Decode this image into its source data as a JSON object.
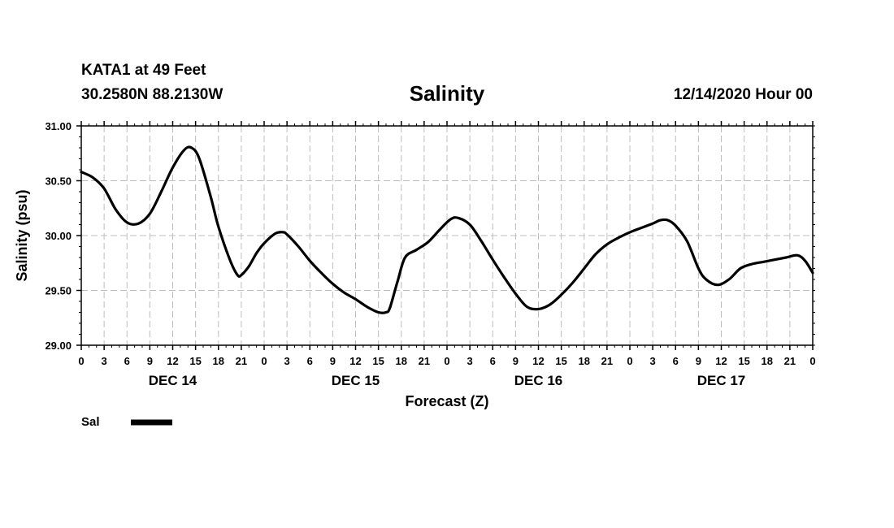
{
  "header": {
    "station": "KATA1 at 49 Feet",
    "coords": "30.2580N 88.2130W",
    "title": "Salinity",
    "datetime": "12/14/2020 Hour 00"
  },
  "chart_data": {
    "type": "line",
    "title": "Salinity",
    "xlabel": "Forecast (Z)",
    "ylabel": "Salinity (psu)",
    "ylim": [
      29.0,
      31.0
    ],
    "xlim_hours": [
      0,
      96
    ],
    "yticks": [
      "29.00",
      "29.50",
      "30.00",
      "30.50",
      "31.00"
    ],
    "ytick_values": [
      29.0,
      29.5,
      30.0,
      30.5,
      31.0
    ],
    "xtick_labels": [
      "0",
      "3",
      "6",
      "9",
      "12",
      "15",
      "18",
      "21",
      "0",
      "3",
      "6",
      "9",
      "12",
      "15",
      "18",
      "21",
      "0",
      "3",
      "6",
      "9",
      "12",
      "15",
      "18",
      "21",
      "0",
      "3",
      "6",
      "9",
      "12",
      "15",
      "18",
      "21",
      "0"
    ],
    "day_labels": [
      {
        "label": "DEC 14",
        "hour": 12
      },
      {
        "label": "DEC 15",
        "hour": 36
      },
      {
        "label": "DEC 16",
        "hour": 60
      },
      {
        "label": "DEC 17",
        "hour": 84
      }
    ],
    "grid": true,
    "legend_position": "bottom-left",
    "series": [
      {
        "name": "Sal",
        "color": "#000000",
        "x": [
          0,
          1.5,
          3,
          4.5,
          6,
          7.5,
          9,
          10.5,
          12,
          13.5,
          14.5,
          15.5,
          17,
          18,
          19.5,
          20.5,
          21,
          22,
          23,
          24,
          25.5,
          26.5,
          27,
          28.5,
          30,
          31.5,
          33,
          34.5,
          36,
          37.5,
          39,
          40,
          40.5,
          41.5,
          42.5,
          44,
          45.5,
          47,
          48.5,
          49.5,
          51,
          52.5,
          54,
          55.5,
          57,
          58.5,
          60,
          61.5,
          63,
          64.5,
          66,
          67.5,
          69,
          70.5,
          72,
          73.5,
          75,
          76,
          77,
          78,
          79.5,
          81,
          82,
          83.5,
          85,
          86.5,
          88,
          89.5,
          91,
          92.5,
          94,
          95,
          96
        ],
        "values": [
          30.58,
          30.53,
          30.43,
          30.24,
          30.12,
          30.11,
          30.2,
          30.4,
          30.62,
          30.78,
          30.8,
          30.7,
          30.35,
          30.08,
          29.78,
          29.64,
          29.64,
          29.72,
          29.84,
          29.93,
          30.02,
          30.03,
          30.01,
          29.9,
          29.77,
          29.66,
          29.56,
          29.48,
          29.42,
          29.35,
          29.3,
          29.3,
          29.34,
          29.58,
          29.8,
          29.87,
          29.94,
          30.05,
          30.15,
          30.16,
          30.1,
          29.95,
          29.78,
          29.62,
          29.47,
          29.35,
          29.33,
          29.37,
          29.46,
          29.57,
          29.7,
          29.83,
          29.92,
          29.98,
          30.03,
          30.07,
          30.11,
          30.14,
          30.14,
          30.09,
          29.95,
          29.7,
          29.6,
          29.55,
          29.6,
          29.7,
          29.74,
          29.76,
          29.78,
          29.8,
          29.82,
          29.77,
          29.66
        ]
      }
    ]
  }
}
